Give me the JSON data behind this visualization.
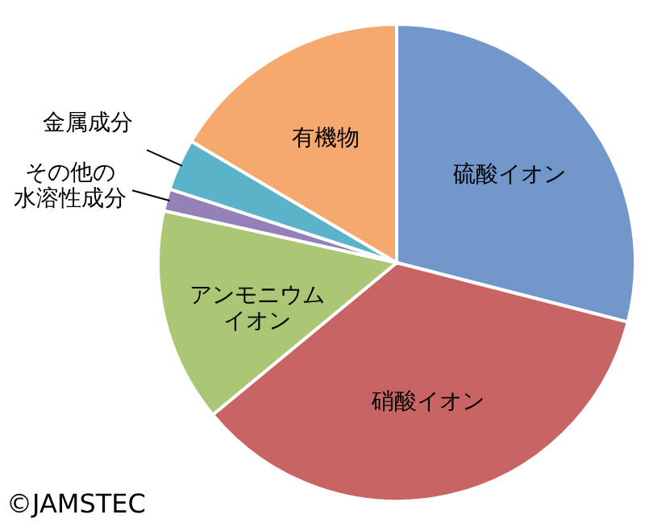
{
  "chart_data": {
    "type": "pie",
    "categories": [
      "硫酸イオン",
      "硝酸イオン",
      "アンモニウムイオン",
      "その他の水溶性成分",
      "金属成分",
      "有機物"
    ],
    "values": [
      29,
      35,
      14.5,
      1.5,
      3.5,
      16.5
    ],
    "colors": [
      "#7197cb",
      "#c96464",
      "#abc776",
      "#9381b7",
      "#5ab3c9",
      "#f6a96f"
    ],
    "annotations": [
      "©JAMSTEC"
    ],
    "legend": false
  }
}
